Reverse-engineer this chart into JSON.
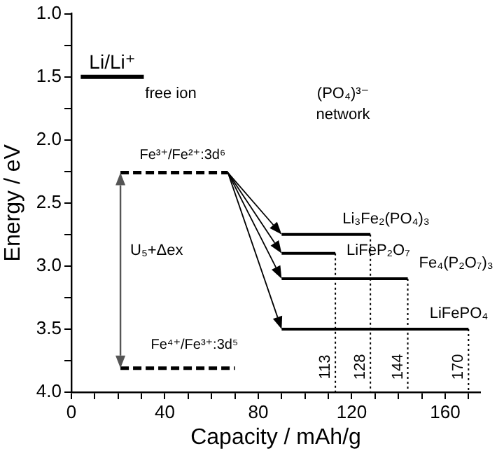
{
  "chart_data": {
    "type": "line",
    "xlabel": "Capacity / mAh/g",
    "ylabel": "Energy / eV",
    "xlim": [
      0,
      175
    ],
    "ylim": [
      4.0,
      1.0
    ],
    "xticks": [
      0,
      {
        "value": 10,
        "label": null
      },
      {
        "value": 20,
        "label": null
      },
      {
        "value": 30,
        "label": null
      },
      40,
      {
        "value": 50,
        "label": null
      },
      {
        "value": 60,
        "label": null
      },
      {
        "value": 70,
        "label": null
      },
      80,
      {
        "value": 90,
        "label": null
      },
      {
        "value": 100,
        "label": null
      },
      {
        "value": 110,
        "label": null
      },
      120,
      {
        "value": 130,
        "label": null
      },
      {
        "value": 140,
        "label": null
      },
      {
        "value": 150,
        "label": null
      },
      160,
      {
        "value": 170,
        "label": null
      }
    ],
    "yticks": [
      {
        "value": 1,
        "label": "1.0"
      },
      {
        "value": 1.25,
        "label": null
      },
      {
        "value": 1.5,
        "label": "1.5"
      },
      {
        "value": 1.75,
        "label": null
      },
      {
        "value": 2,
        "label": "2.0"
      },
      {
        "value": 2.25,
        "label": null
      },
      {
        "value": 2.5,
        "label": "2.5"
      },
      {
        "value": 2.75,
        "label": null
      },
      {
        "value": 3,
        "label": "3.0"
      },
      {
        "value": 3.25,
        "label": null
      },
      {
        "value": 3.5,
        "label": "3.5"
      },
      {
        "value": 3.75,
        "label": null
      },
      {
        "value": 4,
        "label": "4.0"
      }
    ],
    "grid": false,
    "legend": false,
    "marker": "none",
    "series": [
      {
        "name": "Li/Li⁺",
        "color": "#000000",
        "x": [
          4,
          31
        ],
        "values": [
          1.5,
          1.5
        ],
        "line_style": "solid"
      },
      {
        "name": "Fe³⁺/Fe²⁺:3d⁶",
        "color": "#000000",
        "x": [
          21,
          67
        ],
        "values": [
          2.26,
          2.26
        ],
        "line_style": "dashed"
      },
      {
        "name": "Fe⁴⁺/Fe³⁺:3d⁵",
        "color": "#000000",
        "x": [
          21,
          70
        ],
        "values": [
          3.81,
          3.81
        ],
        "line_style": "dashed"
      },
      {
        "name": "Li₃Fe₂(PO₄)₃",
        "color": "#000000",
        "x": [
          90,
          128
        ],
        "values": [
          2.75,
          2.75
        ],
        "line_style": "solid"
      },
      {
        "name": "LiFeP₂O₇",
        "color": "#000000",
        "x": [
          90,
          113
        ],
        "values": [
          2.9,
          2.9
        ],
        "line_style": "solid"
      },
      {
        "name": "Fe₄(P₂O₇)₃",
        "color": "#000000",
        "x": [
          90,
          144
        ],
        "values": [
          3.1,
          3.1
        ],
        "line_style": "solid"
      },
      {
        "name": "LiFePO₄",
        "color": "#000000",
        "x": [
          90,
          170
        ],
        "values": [
          3.5,
          3.5
        ],
        "line_style": "solid"
      },
      {
        "color": "#000000",
        "x": [
          113,
          113
        ],
        "values": [
          2.9,
          4.0
        ],
        "line_style": "dotted"
      },
      {
        "color": "#000000",
        "x": [
          128,
          128
        ],
        "values": [
          2.75,
          4.0
        ],
        "line_style": "dotted"
      },
      {
        "color": "#000000",
        "x": [
          144,
          144
        ],
        "values": [
          3.1,
          4.0
        ],
        "line_style": "dotted"
      },
      {
        "color": "#000000",
        "x": [
          170,
          170
        ],
        "values": [
          3.5,
          4.0
        ],
        "line_style": "dotted"
      }
    ],
    "annotations": [
      "free ion",
      "(PO₄)³⁻ network",
      "U₅+Δex",
      {
        "text": "113",
        "x": 113,
        "y": 3.8
      },
      {
        "text": "128",
        "x": 128,
        "y": 3.8
      },
      {
        "text": "144",
        "x": 144,
        "y": 3.8
      },
      {
        "text": "170",
        "x": 170,
        "y": 3.8
      }
    ]
  }
}
